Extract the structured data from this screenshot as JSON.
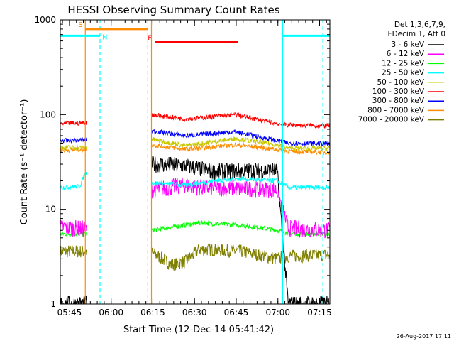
{
  "chart_data": {
    "type": "line",
    "title": "HESSI Observing Summary Count Rates",
    "xlabel": "Start Time (12-Dec-14 05:41:42)",
    "ylabel": "Count Rate (s⁻¹ detector⁻¹)",
    "yscale": "log",
    "ylim": [
      1,
      1000
    ],
    "xlim_minutes": [
      0,
      97
    ],
    "x_ticks": [
      {
        "minutes": 3.3,
        "label": "05:45"
      },
      {
        "minutes": 18.3,
        "label": "06:00"
      },
      {
        "minutes": 33.3,
        "label": "06:15"
      },
      {
        "minutes": 48.3,
        "label": "06:30"
      },
      {
        "minutes": 63.3,
        "label": "06:45"
      },
      {
        "minutes": 78.3,
        "label": "07:00"
      },
      {
        "minutes": 93.3,
        "label": "07:15"
      }
    ],
    "y_ticks": [
      {
        "value": 1,
        "label": "1"
      },
      {
        "value": 10,
        "label": "10"
      },
      {
        "value": 100,
        "label": "100"
      },
      {
        "value": 1000,
        "label": "1000"
      }
    ],
    "legend_header": [
      "Det 1,3,6,7,9,",
      "FDecim 1, Att 0"
    ],
    "legend_position": "right",
    "data_gap_minutes": [
      9.5,
      32.8
    ],
    "series": [
      {
        "name": "3 - 6 keV",
        "color": "#000000",
        "data": [
          [
            0,
            1.0
          ],
          [
            9,
            1.0
          ],
          [
            33,
            30
          ],
          [
            45,
            29
          ],
          [
            55,
            25
          ],
          [
            78,
            26
          ],
          [
            82,
            1.0
          ],
          [
            97,
            1.0
          ]
        ]
      },
      {
        "name": "6 - 12 keV",
        "color": "#ff00ff",
        "data": [
          [
            0,
            6.5
          ],
          [
            9,
            6.2
          ],
          [
            33,
            16
          ],
          [
            45,
            18
          ],
          [
            50,
            17
          ],
          [
            78,
            16
          ],
          [
            82,
            6.3
          ],
          [
            97,
            6.0
          ]
        ]
      },
      {
        "name": "12 - 25 keV",
        "color": "#00ff00",
        "data": [
          [
            0,
            5.5
          ],
          [
            9,
            5.5
          ],
          [
            33,
            6.0
          ],
          [
            50,
            7.2
          ],
          [
            65,
            6.8
          ],
          [
            78,
            6.0
          ],
          [
            82,
            5.6
          ],
          [
            97,
            5.5
          ]
        ]
      },
      {
        "name": "25 - 50 keV",
        "color": "#00ffff",
        "data": [
          [
            0,
            17
          ],
          [
            7,
            17.5
          ],
          [
            9,
            24
          ],
          [
            33,
            19
          ],
          [
            45,
            18
          ],
          [
            55,
            20
          ],
          [
            65,
            21
          ],
          [
            78,
            20
          ],
          [
            82,
            17
          ],
          [
            97,
            17
          ]
        ]
      },
      {
        "name": "50 - 100 keV",
        "color": "#c8c800",
        "data": [
          [
            0,
            45
          ],
          [
            9,
            45
          ],
          [
            33,
            55
          ],
          [
            45,
            47
          ],
          [
            63,
            56
          ],
          [
            78,
            48
          ],
          [
            82,
            44
          ],
          [
            97,
            44
          ]
        ]
      },
      {
        "name": "100 - 300 keV",
        "color": "#ff0000",
        "data": [
          [
            0,
            80
          ],
          [
            9,
            82
          ],
          [
            33,
            100
          ],
          [
            45,
            90
          ],
          [
            63,
            100
          ],
          [
            78,
            80
          ],
          [
            82,
            78
          ],
          [
            97,
            76
          ]
        ]
      },
      {
        "name": "300 - 800 keV",
        "color": "#0000ff",
        "data": [
          [
            0,
            53
          ],
          [
            9,
            54
          ],
          [
            33,
            67
          ],
          [
            45,
            60
          ],
          [
            63,
            66
          ],
          [
            78,
            53
          ],
          [
            82,
            50
          ],
          [
            97,
            49
          ]
        ]
      },
      {
        "name": "800 - 7000 keV",
        "color": "#ff8c00",
        "data": [
          [
            0,
            42
          ],
          [
            9,
            43
          ],
          [
            33,
            48
          ],
          [
            45,
            43
          ],
          [
            63,
            48
          ],
          [
            78,
            43
          ],
          [
            82,
            41
          ],
          [
            97,
            40
          ]
        ]
      },
      {
        "name": "7000 - 20000 keV",
        "color": "#808000",
        "data": [
          [
            0,
            3.6
          ],
          [
            9,
            3.6
          ],
          [
            33,
            3.5
          ],
          [
            40,
            2.6
          ],
          [
            45,
            2.8
          ],
          [
            50,
            3.8
          ],
          [
            65,
            3.6
          ],
          [
            78,
            3.0
          ],
          [
            82,
            3.2
          ],
          [
            97,
            3.3
          ]
        ]
      }
    ],
    "annotations": [
      {
        "label": "S",
        "color": "#ff8c00",
        "from_minutes": 9.0,
        "to_minutes": 31.5,
        "y": 800
      },
      {
        "label": "N",
        "color": "#00ffff",
        "from_minutes": 0,
        "to_minutes": 14.3,
        "y": 680
      },
      {
        "label": "F",
        "color": "#ff0000",
        "from_minutes": 34.0,
        "to_minutes": 64.0,
        "y": 580
      },
      {
        "label": "",
        "color": "#00ffff",
        "from_minutes": 80.0,
        "to_minutes": 97,
        "y": 680
      }
    ],
    "vertical_markers": [
      {
        "minutes": 9.0,
        "color": "#ff8c00",
        "style": "solid"
      },
      {
        "minutes": 14.3,
        "color": "#00ffff",
        "style": "dashed"
      },
      {
        "minutes": 31.5,
        "color": "#ff8c00",
        "style": "dashed"
      },
      {
        "minutes": 32.8,
        "color": "#ff8c00",
        "style": "solid"
      },
      {
        "minutes": 80.0,
        "color": "#00ffff",
        "style": "solid"
      },
      {
        "minutes": 94.5,
        "color": "#00ffff",
        "style": "dashed"
      }
    ],
    "footer_stamp": "26-Aug-2017 17:11"
  }
}
